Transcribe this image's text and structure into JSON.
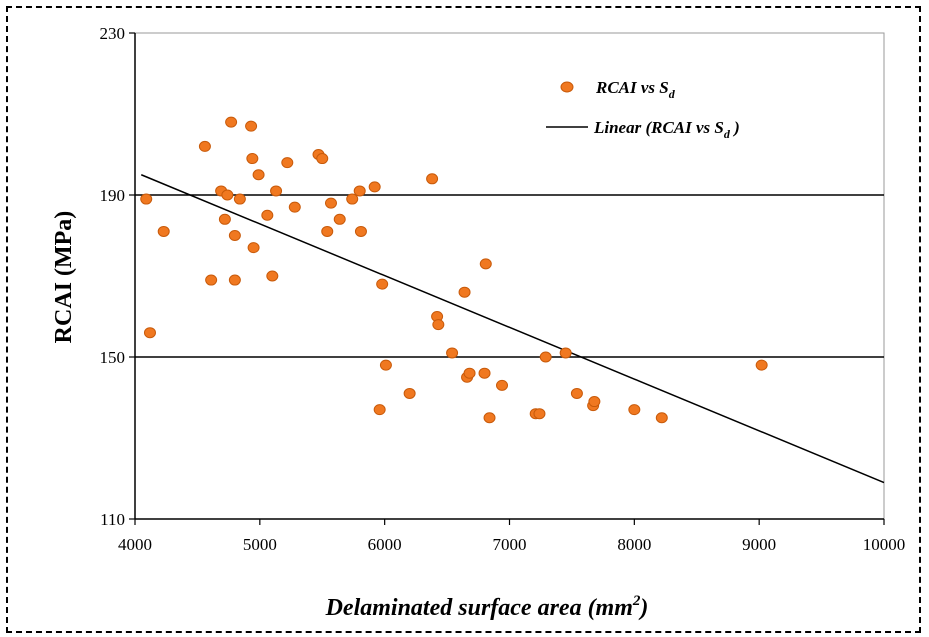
{
  "chart_data": {
    "type": "scatter",
    "xlabel": "Delaminated surface area (mm",
    "xlabel_sup": "2",
    "xlabel_end": ")",
    "ylabel": "RCAI (MPa)",
    "xlim": [
      4000,
      10000
    ],
    "ylim": [
      110,
      230
    ],
    "xticks": [
      "4000",
      "5000",
      "6000",
      "7000",
      "8000",
      "9000",
      "10000"
    ],
    "yticks": [
      "110",
      "150",
      "190",
      "230"
    ],
    "grid_y": [
      150,
      190
    ],
    "legend_position": "top-right",
    "legend": {
      "series_label": "RCAI vs  S",
      "series_sub": "d",
      "fit_label": "Linear (RCAI vs S",
      "fit_sub": "d",
      "fit_end": " )"
    },
    "colors": {
      "marker": "#f07820",
      "marker_edge": "#c85a0a",
      "line": "#000000",
      "grid": "#000000"
    },
    "series": [
      {
        "points": [
          [
            4090,
            189
          ],
          [
            4120,
            156
          ],
          [
            4230,
            181
          ],
          [
            4560,
            202
          ],
          [
            4610,
            169
          ],
          [
            4690,
            191
          ],
          [
            4720,
            184
          ],
          [
            4740,
            190
          ],
          [
            4770,
            208
          ],
          [
            4800,
            180
          ],
          [
            4800,
            169
          ],
          [
            4840,
            189
          ],
          [
            4930,
            207
          ],
          [
            4940,
            199
          ],
          [
            4950,
            177
          ],
          [
            4990,
            195
          ],
          [
            5060,
            185
          ],
          [
            5100,
            170
          ],
          [
            5130,
            191
          ],
          [
            5220,
            198
          ],
          [
            5280,
            187
          ],
          [
            5470,
            200
          ],
          [
            5500,
            199
          ],
          [
            5540,
            181
          ],
          [
            5570,
            188
          ],
          [
            5640,
            184
          ],
          [
            5740,
            189
          ],
          [
            5800,
            191
          ],
          [
            5810,
            181
          ],
          [
            5920,
            192
          ],
          [
            5960,
            137
          ],
          [
            5980,
            168
          ],
          [
            6010,
            148
          ],
          [
            6200,
            141
          ],
          [
            6380,
            194
          ],
          [
            6420,
            160
          ],
          [
            6430,
            158
          ],
          [
            6540,
            151
          ],
          [
            6640,
            166
          ],
          [
            6660,
            145
          ],
          [
            6680,
            146
          ],
          [
            6800,
            146
          ],
          [
            6810,
            173
          ],
          [
            6840,
            135
          ],
          [
            6940,
            143
          ],
          [
            7210,
            136
          ],
          [
            7240,
            136
          ],
          [
            7290,
            150
          ],
          [
            7450,
            151
          ],
          [
            7540,
            141
          ],
          [
            7670,
            138
          ],
          [
            7680,
            139
          ],
          [
            8000,
            137
          ],
          [
            8220,
            135
          ],
          [
            9020,
            148
          ]
        ]
      }
    ],
    "fit": {
      "x": [
        4050,
        10000
      ],
      "y": [
        195,
        119
      ]
    }
  }
}
